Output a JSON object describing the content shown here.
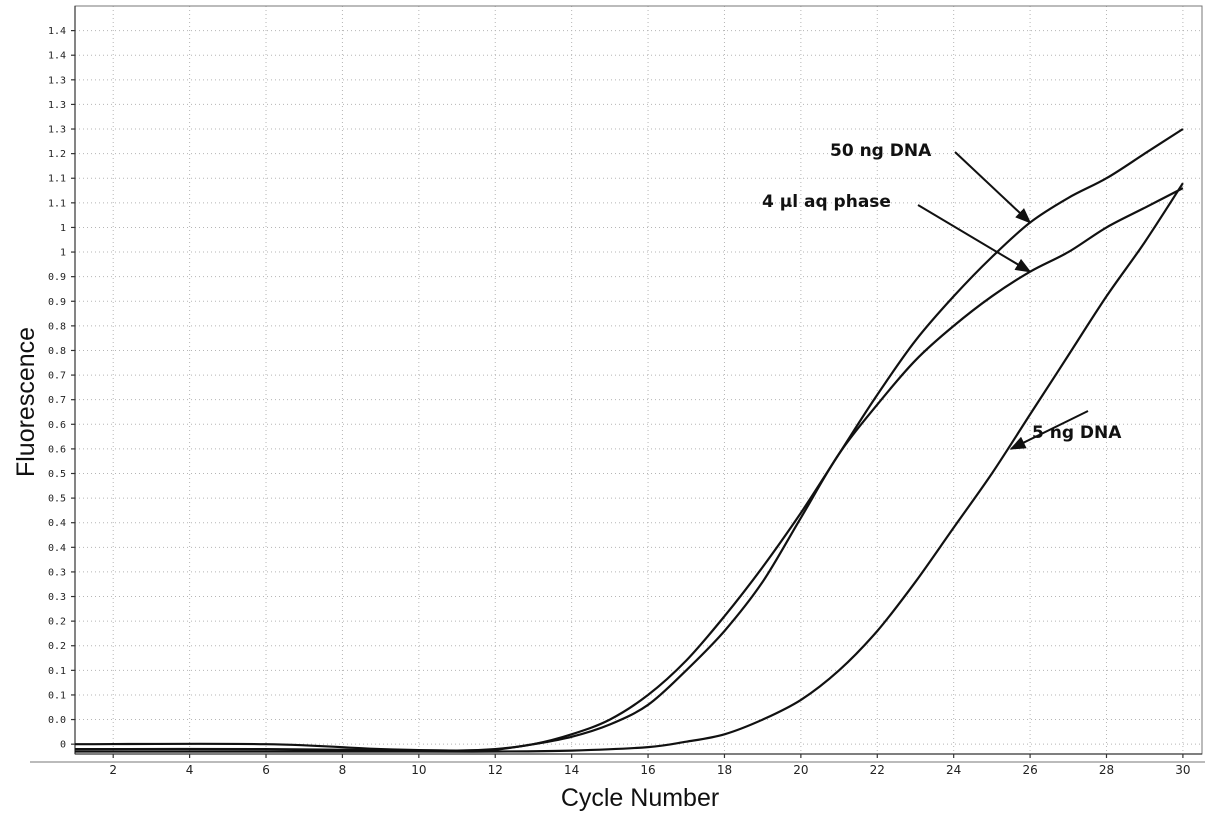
{
  "chart_data": {
    "type": "line",
    "title": "",
    "xlabel": "Cycle Number",
    "ylabel": "Fluorescence",
    "xlim": [
      1,
      30.5
    ],
    "x_ticks": [
      2,
      4,
      6,
      8,
      10,
      12,
      14,
      16,
      18,
      20,
      22,
      24,
      26,
      28,
      30
    ],
    "ylim": [
      -0.02,
      1.5
    ],
    "y_ticks": [
      0,
      0.05,
      0.1,
      0.15,
      0.2,
      0.25,
      0.3,
      0.35,
      0.4,
      0.45,
      0.5,
      0.55,
      0.6,
      0.65,
      0.7,
      0.75,
      0.8,
      0.85,
      0.9,
      0.95,
      1.0,
      1.05,
      1.1,
      1.15,
      1.2,
      1.25,
      1.3,
      1.35,
      1.4,
      1.45
    ],
    "y_tick_labels": [
      "0",
      "0.0",
      "0.1",
      "0.1",
      "0.2",
      "0.2",
      "0.3",
      "0.3",
      "0.4",
      "0.4",
      "0.5",
      "0.5",
      "0.6",
      "0.6",
      "0.7",
      "0.7",
      "0.8",
      "0.8",
      "0.9",
      "0.9",
      "1",
      "1",
      "1.1",
      "1.1",
      "1.2",
      "1.3",
      "1.3",
      "1.3",
      "1.4",
      "1.4"
    ],
    "grid": true,
    "legend": "none",
    "series": [
      {
        "name": "50 ng DNA",
        "x": [
          1,
          6,
          9,
          11,
          12,
          13,
          14,
          15,
          16,
          17,
          18,
          19,
          20,
          21,
          22,
          23,
          24,
          25,
          26,
          27,
          28,
          29,
          30
        ],
        "y": [
          0.0,
          0.0,
          -0.01,
          -0.013,
          -0.01,
          0.0,
          0.02,
          0.05,
          0.1,
          0.17,
          0.26,
          0.36,
          0.47,
          0.59,
          0.71,
          0.82,
          0.91,
          0.99,
          1.06,
          1.11,
          1.15,
          1.2,
          1.25
        ]
      },
      {
        "name": "4 µl aq phase",
        "x": [
          1,
          6,
          9,
          11,
          12,
          13,
          14,
          15,
          16,
          17,
          18,
          19,
          20,
          21,
          22,
          23,
          24,
          25,
          26,
          27,
          28,
          29,
          30
        ],
        "y": [
          -0.01,
          -0.01,
          -0.012,
          -0.013,
          -0.011,
          0.0,
          0.015,
          0.04,
          0.08,
          0.15,
          0.23,
          0.33,
          0.46,
          0.59,
          0.69,
          0.78,
          0.85,
          0.91,
          0.96,
          1.0,
          1.05,
          1.09,
          1.13
        ]
      },
      {
        "name": "5 ng DNA",
        "x": [
          1,
          6,
          10,
          12,
          14,
          16,
          17,
          18,
          19,
          20,
          21,
          22,
          23,
          24,
          25,
          26,
          27,
          28,
          29,
          30
        ],
        "y": [
          -0.015,
          -0.015,
          -0.015,
          -0.015,
          -0.013,
          -0.006,
          0.005,
          0.02,
          0.05,
          0.09,
          0.15,
          0.23,
          0.33,
          0.44,
          0.55,
          0.67,
          0.79,
          0.91,
          1.02,
          1.14
        ]
      }
    ],
    "annotations": [
      {
        "text": "50 ng DNA",
        "points_to": [
          26,
          1.06
        ]
      },
      {
        "text": "4 µl aq phase",
        "points_to": [
          26,
          0.96
        ]
      },
      {
        "text": "5 ng DNA",
        "points_to": [
          25.5,
          0.6
        ]
      }
    ]
  }
}
